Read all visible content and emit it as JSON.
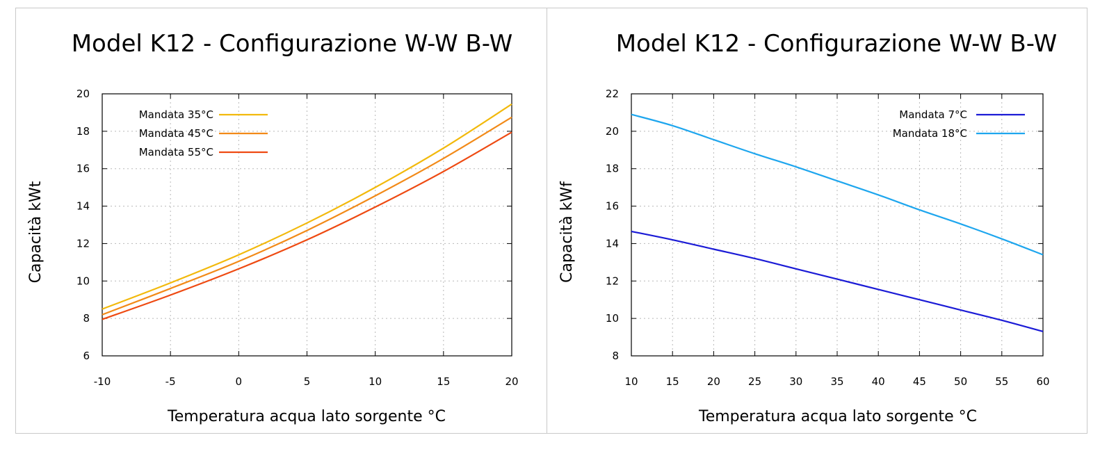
{
  "chart_data": [
    {
      "type": "line",
      "title": "Model K12 - Configurazione W-W B-W",
      "xlabel": "Temperatura acqua lato sorgente °C",
      "ylabel": "Capacità kWt",
      "xlim": [
        -10,
        20
      ],
      "ylim": [
        6,
        20
      ],
      "xticks": [
        -10,
        -5,
        0,
        5,
        10,
        15,
        20
      ],
      "yticks": [
        6,
        8,
        10,
        12,
        14,
        16,
        18,
        20
      ],
      "grid": true,
      "legend_position": "top-left",
      "x": [
        -10,
        -5,
        0,
        5,
        10,
        15,
        20
      ],
      "series": [
        {
          "name": "Mandata 35°C",
          "color": "#f2b90c",
          "values": [
            8.5,
            9.9,
            11.4,
            13.1,
            15.0,
            17.1,
            19.45
          ]
        },
        {
          "name": "Mandata 45°C",
          "color": "#f28a18",
          "values": [
            8.2,
            9.6,
            11.05,
            12.7,
            14.55,
            16.55,
            18.75
          ]
        },
        {
          "name": "Mandata 55°C",
          "color": "#ee4a12",
          "values": [
            7.95,
            9.25,
            10.65,
            12.2,
            13.95,
            15.85,
            17.95
          ]
        }
      ]
    },
    {
      "type": "line",
      "title": "Model K12 - Configurazione W-W B-W",
      "xlabel": "Temperatura acqua lato sorgente °C",
      "ylabel": "Capacità kWf",
      "xlim": [
        10,
        60
      ],
      "ylim": [
        8,
        22
      ],
      "xticks": [
        10,
        15,
        20,
        25,
        30,
        35,
        40,
        45,
        50,
        55,
        60
      ],
      "yticks": [
        8,
        10,
        12,
        14,
        16,
        18,
        20,
        22
      ],
      "grid": true,
      "legend_position": "top-right",
      "x": [
        10,
        15,
        20,
        25,
        30,
        35,
        40,
        45,
        50,
        55,
        60
      ],
      "series": [
        {
          "name": "Mandata 7°C",
          "color": "#1b1bd6",
          "values": [
            14.65,
            14.2,
            13.7,
            13.2,
            12.65,
            12.1,
            11.55,
            11.0,
            10.45,
            9.9,
            9.3
          ]
        },
        {
          "name": "Mandata 18°C",
          "color": "#1ea6ee",
          "values": [
            20.9,
            20.3,
            19.55,
            18.8,
            18.1,
            17.35,
            16.6,
            15.8,
            15.05,
            14.25,
            13.4
          ]
        }
      ]
    }
  ]
}
